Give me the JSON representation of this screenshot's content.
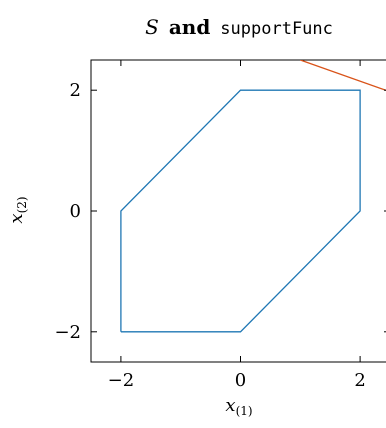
{
  "chart_data": {
    "type": "line",
    "title": {
      "symbol": "S",
      "connector": "and",
      "func_name": "supportFunc"
    },
    "xlabel": {
      "base": "x",
      "sub": "(1)"
    },
    "ylabel": {
      "base": "x",
      "sub": "(2)"
    },
    "xlim": [
      -2.5,
      2.5
    ],
    "ylim": [
      -2.5,
      2.5
    ],
    "xticks": [
      -2,
      0,
      2
    ],
    "yticks": [
      -2,
      0,
      2
    ],
    "xtick_labels": [
      "−2",
      "0",
      "2"
    ],
    "ytick_labels": [
      "−2",
      "0",
      "2"
    ],
    "grid": false,
    "series": [
      {
        "color": "#1f77b4",
        "closed": true,
        "x": [
          -2,
          0,
          2,
          2,
          0,
          -2,
          -2
        ],
        "y": [
          -2,
          -2,
          0,
          2,
          2,
          0,
          -2
        ]
      },
      {
        "color": "#d95319",
        "closed": false,
        "x": [
          1,
          3
        ],
        "y": [
          2.5,
          1.8
        ]
      }
    ]
  }
}
